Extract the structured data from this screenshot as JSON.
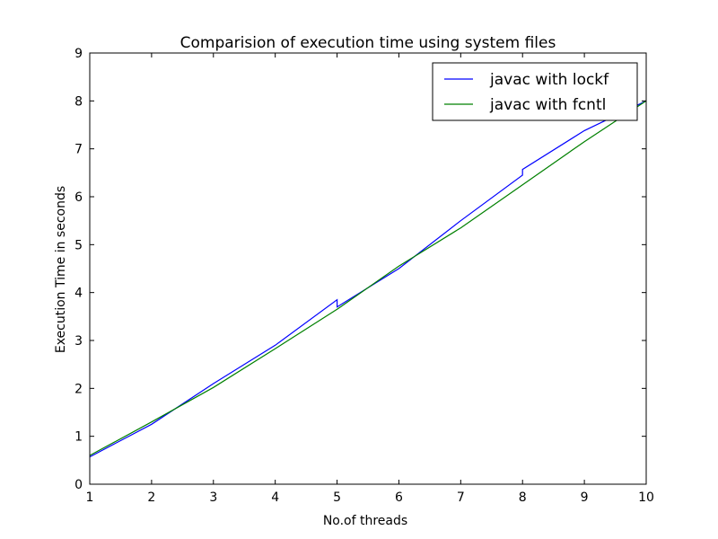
{
  "chart_data": {
    "type": "line",
    "title": "Comparision of execution time using system files",
    "xlabel": "No.of threads",
    "ylabel": "Execution Time in seconds",
    "xlim": [
      1,
      10
    ],
    "ylim": [
      0,
      9
    ],
    "xticks": [
      1,
      2,
      3,
      4,
      5,
      6,
      7,
      8,
      9,
      10
    ],
    "yticks": [
      0,
      1,
      2,
      3,
      4,
      5,
      6,
      7,
      8,
      9
    ],
    "grid": false,
    "legend_position": "top-right",
    "series": [
      {
        "name": "javac with lockf",
        "color": "#0000ff",
        "points": [
          [
            1,
            0.57
          ],
          [
            2,
            1.25
          ],
          [
            3,
            2.1
          ],
          [
            4,
            2.9
          ],
          [
            5,
            3.85
          ],
          [
            5,
            3.7
          ],
          [
            6,
            4.5
          ],
          [
            7,
            5.5
          ],
          [
            8,
            6.45
          ],
          [
            8,
            6.57
          ],
          [
            9,
            7.38
          ],
          [
            10,
            8.0
          ]
        ]
      },
      {
        "name": "javac with fcntl",
        "color": "#008000",
        "points": [
          [
            1,
            0.6
          ],
          [
            2,
            1.3
          ],
          [
            3,
            2.02
          ],
          [
            4,
            2.83
          ],
          [
            5,
            3.65
          ],
          [
            6,
            4.55
          ],
          [
            7,
            5.35
          ],
          [
            8,
            6.25
          ],
          [
            9,
            7.15
          ],
          [
            10,
            8.0
          ]
        ]
      }
    ]
  }
}
